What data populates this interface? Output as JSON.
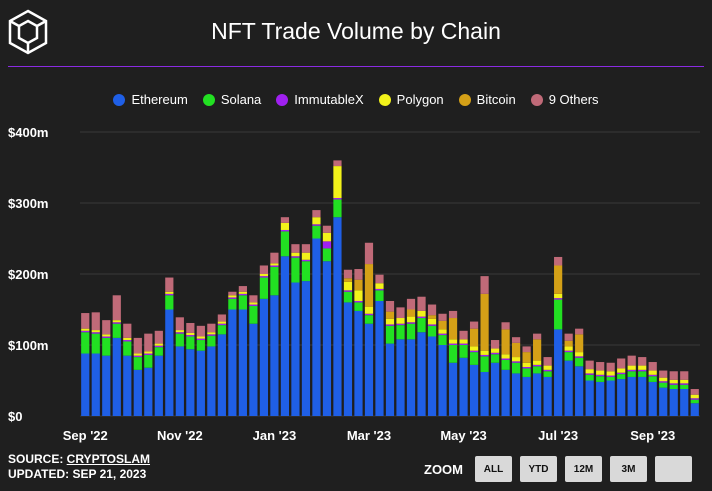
{
  "header": {
    "title": "NFT Trade Volume by Chain"
  },
  "legend": [
    {
      "label": "Ethereum",
      "color": "#1f5fe6"
    },
    {
      "label": "Solana",
      "color": "#22e022"
    },
    {
      "label": "ImmutableX",
      "color": "#a020f0"
    },
    {
      "label": "Polygon",
      "color": "#f2f21a"
    },
    {
      "label": "Bitcoin",
      "color": "#d4a017"
    },
    {
      "label": "9 Others",
      "color": "#c06a78"
    }
  ],
  "footer": {
    "source_prefix": "SOURCE: ",
    "source_link": "CRYPTOSLAM",
    "updated": "UPDATED: SEP 21, 2023"
  },
  "zoom": {
    "label": "ZOOM",
    "buttons": [
      "ALL",
      "YTD",
      "12M",
      "3M",
      ""
    ]
  },
  "chart_data": {
    "type": "bar",
    "stacked": true,
    "title": "NFT Trade Volume by Chain",
    "unit": "$ millions",
    "ylim": [
      0,
      400
    ],
    "yticks": [
      0,
      100,
      200,
      300,
      400
    ],
    "ytick_labels": [
      "$0",
      "$100m",
      "$200m",
      "$300m",
      "$400m"
    ],
    "xtick_labels": [
      {
        "label": "Sep '22",
        "index": 0
      },
      {
        "label": "Nov '22",
        "index": 9
      },
      {
        "label": "Jan '23",
        "index": 18
      },
      {
        "label": "Mar '23",
        "index": 27
      },
      {
        "label": "May '23",
        "index": 36
      },
      {
        "label": "Jul '23",
        "index": 45
      },
      {
        "label": "Sep '23",
        "index": 54
      }
    ],
    "grid": true,
    "series": [
      {
        "name": "Ethereum",
        "color": "#1f5fe6",
        "values": [
          88,
          88,
          85,
          110,
          85,
          65,
          68,
          85,
          150,
          98,
          94,
          92,
          98,
          115,
          150,
          150,
          130,
          165,
          170,
          225,
          188,
          190,
          250,
          218,
          280,
          160,
          148,
          130,
          162,
          102,
          108,
          108,
          118,
          112,
          100,
          75,
          82,
          72,
          62,
          75,
          65,
          60,
          55,
          60,
          55,
          122,
          78,
          70,
          50,
          48,
          50,
          52,
          55,
          55,
          48,
          40,
          38,
          38,
          18
        ]
      },
      {
        "name": "Solana",
        "color": "#22e022",
        "values": [
          30,
          28,
          25,
          20,
          20,
          18,
          18,
          12,
          20,
          18,
          18,
          15,
          15,
          13,
          15,
          20,
          25,
          30,
          40,
          35,
          35,
          28,
          18,
          18,
          25,
          15,
          12,
          12,
          15,
          25,
          20,
          22,
          20,
          15,
          14,
          25,
          18,
          18,
          22,
          12,
          14,
          15,
          12,
          10,
          8,
          42,
          12,
          12,
          8,
          8,
          5,
          7,
          8,
          8,
          8,
          7,
          6,
          6,
          5
        ]
      },
      {
        "name": "ImmutableX",
        "color": "#a020f0",
        "values": [
          2,
          2,
          2,
          2,
          2,
          2,
          2,
          2,
          2,
          2,
          2,
          2,
          2,
          2,
          2,
          2,
          2,
          2,
          2,
          2,
          2,
          2,
          2,
          10,
          2,
          2,
          2,
          2,
          2,
          2,
          2,
          2,
          2,
          2,
          2,
          2,
          2,
          2,
          2,
          2,
          2,
          2,
          2,
          2,
          2,
          2,
          2,
          2,
          2,
          2,
          2,
          2,
          2,
          2,
          2,
          2,
          2,
          2,
          2
        ]
      },
      {
        "name": "Polygon",
        "color": "#f2f21a",
        "values": [
          3,
          3,
          3,
          3,
          3,
          3,
          3,
          3,
          3,
          3,
          3,
          3,
          3,
          3,
          3,
          3,
          3,
          3,
          3,
          10,
          5,
          10,
          10,
          12,
          45,
          12,
          15,
          10,
          8,
          8,
          8,
          8,
          8,
          8,
          6,
          6,
          6,
          6,
          6,
          6,
          6,
          6,
          6,
          6,
          6,
          6,
          6,
          6,
          6,
          6,
          6,
          6,
          6,
          6,
          6,
          5,
          5,
          5,
          5
        ]
      },
      {
        "name": "Bitcoin",
        "color": "#d4a017",
        "values": [
          0,
          0,
          0,
          0,
          0,
          0,
          0,
          0,
          0,
          0,
          0,
          0,
          0,
          0,
          0,
          0,
          0,
          0,
          0,
          0,
          0,
          0,
          0,
          0,
          0,
          5,
          15,
          60,
          0,
          10,
          0,
          10,
          0,
          5,
          12,
          30,
          0,
          25,
          80,
          0,
          35,
          20,
          15,
          30,
          0,
          40,
          8,
          25,
          0,
          0,
          0,
          0,
          0,
          0,
          0,
          0,
          0,
          0,
          0
        ]
      },
      {
        "name": "9 Others",
        "color": "#c06a78",
        "values": [
          22,
          25,
          20,
          35,
          20,
          22,
          25,
          18,
          20,
          18,
          14,
          15,
          12,
          10,
          5,
          8,
          10,
          12,
          15,
          8,
          12,
          12,
          10,
          10,
          8,
          12,
          15,
          30,
          12,
          15,
          15,
          15,
          20,
          15,
          10,
          10,
          12,
          10,
          25,
          12,
          10,
          8,
          8,
          8,
          12,
          12,
          10,
          8,
          12,
          12,
          12,
          14,
          14,
          12,
          12,
          10,
          12,
          12,
          8
        ]
      }
    ]
  }
}
